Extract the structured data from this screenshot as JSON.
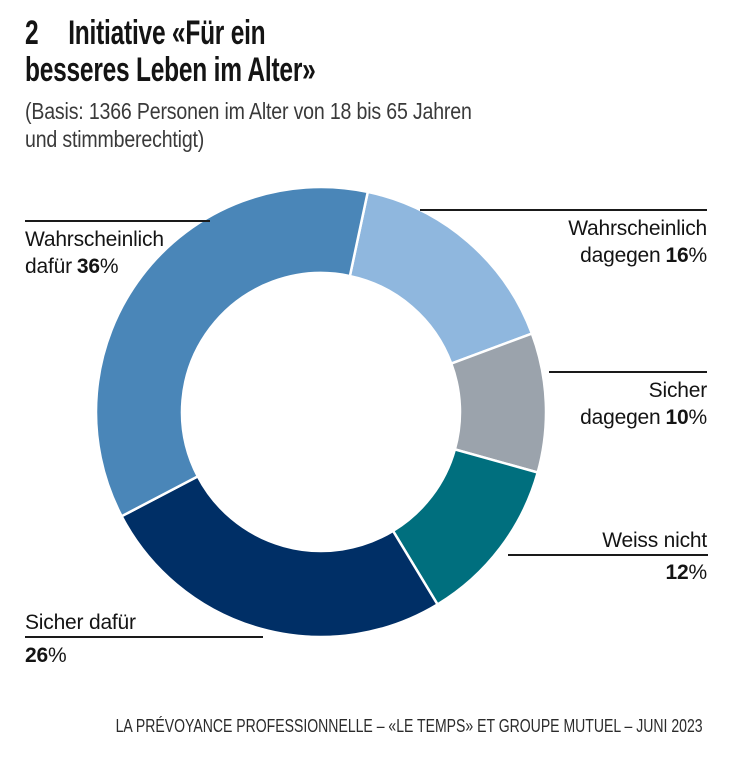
{
  "header": {
    "number": "2",
    "title_line1": "Initiative «Für ein",
    "title_line2": "besseres Leben im Alter»",
    "subtitle_line1": "(Basis: 1366 Personen im Alter von 18 bis 65 Jahren",
    "subtitle_line2": "und stimmberechtigt)"
  },
  "chart_data": {
    "type": "donut",
    "title": "Initiative «Für ein besseres Leben im Alter»",
    "basis_text": "(Basis: 1366 Personen im Alter von 18 bis 65 Jahren und stimmberechtigt)",
    "start_angle_deg": 12,
    "direction": "clockwise",
    "segments": [
      {
        "label": "Wahrscheinlich dagegen",
        "value_pct": 16,
        "color": "#8fb7de"
      },
      {
        "label": "Sicher dagegen",
        "value_pct": 10,
        "color": "#9ba3ac"
      },
      {
        "label": "Weiss nicht",
        "value_pct": 12,
        "color": "#006f7e"
      },
      {
        "label": "Sicher dafür",
        "value_pct": 26,
        "color": "#002f66"
      },
      {
        "label": "Wahrscheinlich dafür",
        "value_pct": 36,
        "color": "#4a86b8"
      }
    ],
    "separator_color": "#ffffff"
  },
  "callouts": {
    "wahrscheinlich_dafur": {
      "line1": "Wahrscheinlich",
      "line2": "dafür",
      "pct": "36",
      "pct_sign": "%"
    },
    "wahrscheinlich_dagegen": {
      "line1": "Wahrscheinlich",
      "line2": "dagegen",
      "pct": "16",
      "pct_sign": "%"
    },
    "sicher_dagegen": {
      "line1": "Sicher",
      "line2": "dagegen",
      "pct": "10",
      "pct_sign": "%"
    },
    "weiss_nicht": {
      "line1": "Weiss nicht",
      "pct": "12",
      "pct_sign": "%"
    },
    "sicher_dafur": {
      "line1": "Sicher dafür",
      "pct": "26",
      "pct_sign": "%"
    }
  },
  "footer": {
    "source": "LA PRÉVOYANCE PROFESSIONNELLE – «LE TEMPS» ET GROUPE MUTUEL – JUNI 2023"
  }
}
